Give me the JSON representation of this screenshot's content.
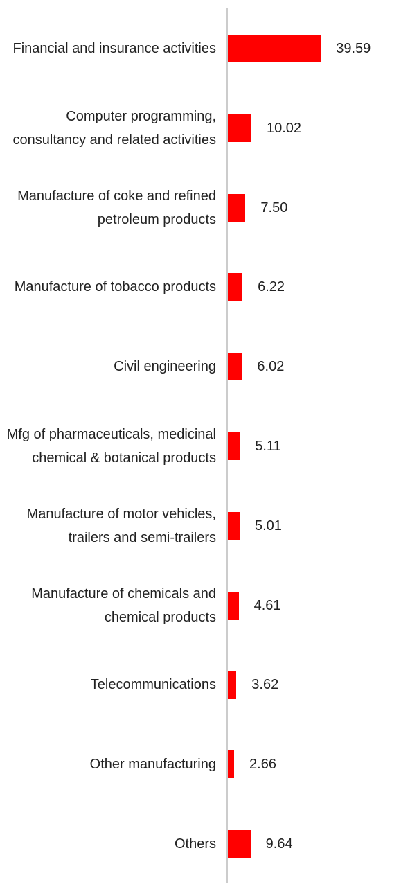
{
  "chart_data": {
    "type": "bar",
    "orientation": "horizontal",
    "color": "#ff0000",
    "categories": [
      "Financial and insurance activities",
      "Computer programming, consultancy and related activities",
      "Manufacture of coke and refined petroleum products",
      "Manufacture of tobacco products",
      "Civil engineering",
      "Mfg of pharmaceuticals, medicinal chemical & botanical products",
      "Manufacture of motor vehicles, trailers and semi-trailers",
      "Manufacture of chemicals and chemical products",
      "Telecommunications",
      "Other manufacturing",
      "Others"
    ],
    "values": [
      39.59,
      10.02,
      7.5,
      6.22,
      6.02,
      5.11,
      5.01,
      4.61,
      3.62,
      2.66,
      9.64
    ],
    "value_labels": [
      "39.59",
      "10.02",
      "7.50",
      "6.22",
      "6.02",
      "5.11",
      "5.01",
      "4.61",
      "3.62",
      "2.66",
      "9.64"
    ]
  }
}
